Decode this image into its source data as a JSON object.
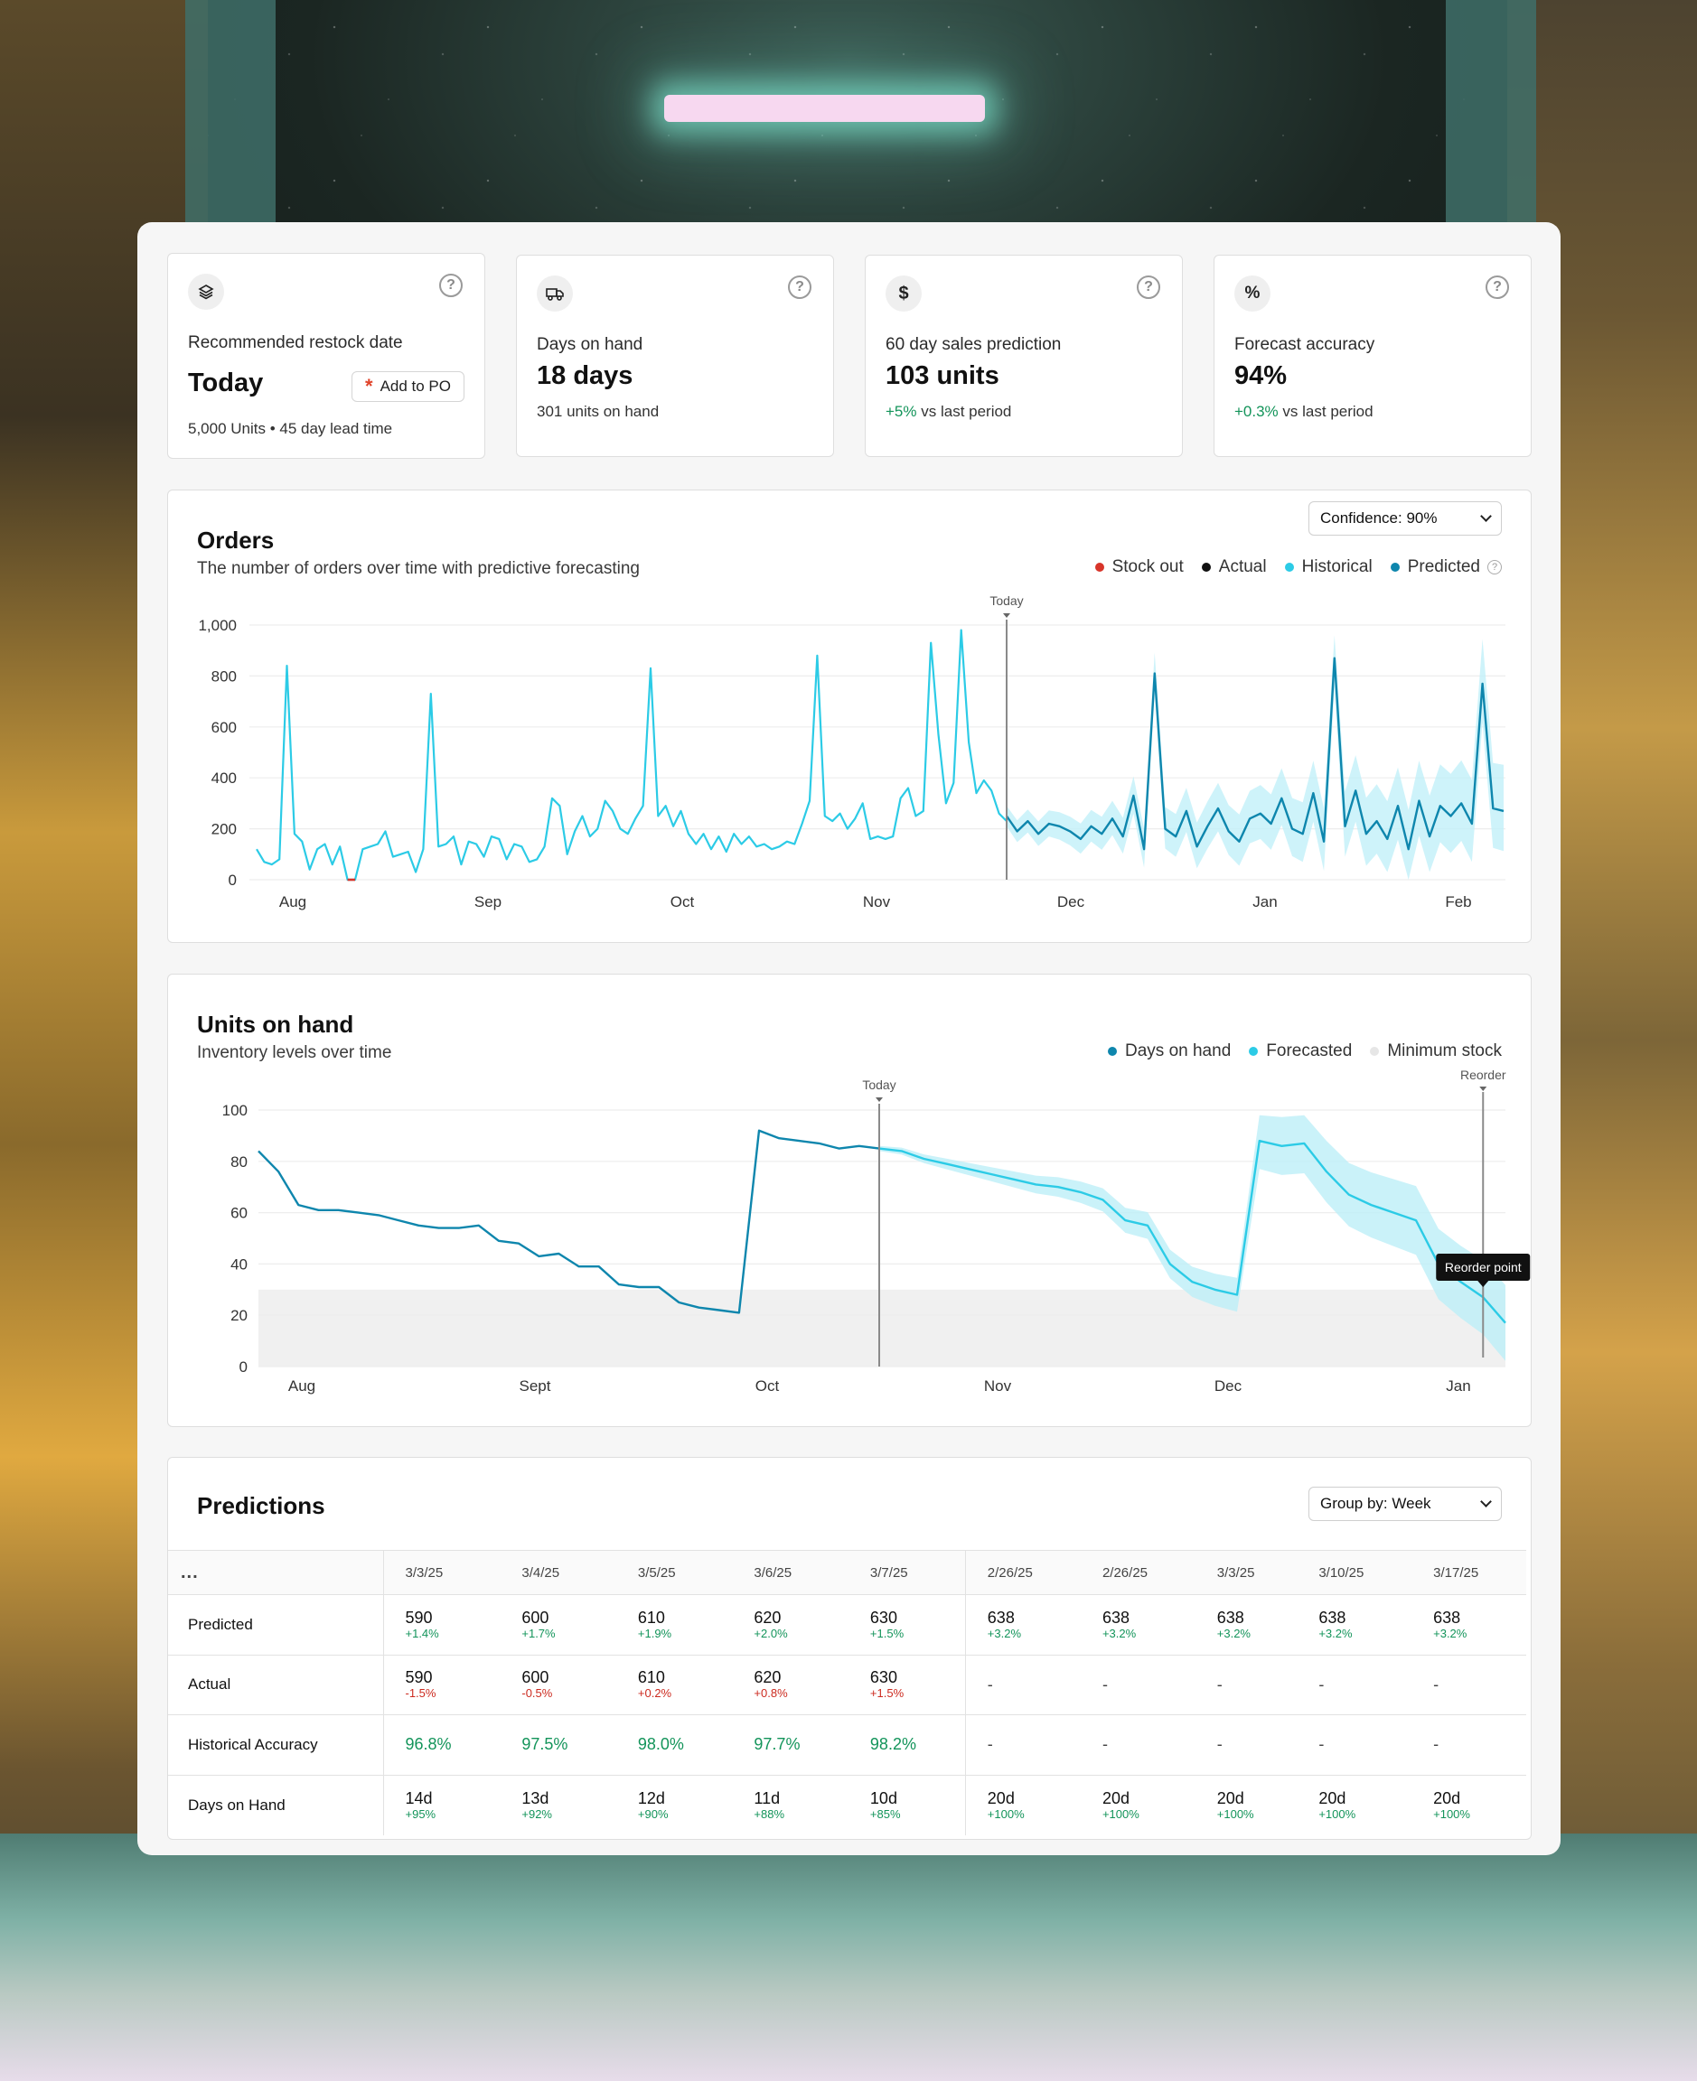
{
  "kpis": [
    {
      "icon": "layers-icon",
      "label": "Recommended restock date",
      "value": "Today",
      "button": "Add to PO",
      "sub": "5,000 Units • 45 day lead time"
    },
    {
      "icon": "truck-icon",
      "label": "Days on hand",
      "value": "18 days",
      "sub": "301 units on hand",
      "sub_tone": "negative"
    },
    {
      "icon": "dollar-icon",
      "label": "60 day sales prediction",
      "value": "103 units",
      "delta": "+5%",
      "sub": "vs last period"
    },
    {
      "icon": "percent-icon",
      "label": "Forecast accuracy",
      "value": "94%",
      "delta": "+0.3%",
      "sub": "vs last period"
    }
  ],
  "orders": {
    "title": "Orders",
    "subtitle": "The number of orders over time with predictive forecasting",
    "confidence": "Confidence: 90%",
    "legend": [
      {
        "label": "Stock out",
        "color": "#d8352a"
      },
      {
        "label": "Actual",
        "color": "#111111"
      },
      {
        "label": "Historical",
        "color": "#2ccbe6"
      },
      {
        "label": "Predicted",
        "color": "#0e86ad"
      }
    ],
    "today_label": "Today"
  },
  "units": {
    "title": "Units on hand",
    "subtitle": "Inventory levels over time",
    "legend": [
      {
        "label": "Days on hand",
        "color": "#0e86ad"
      },
      {
        "label": "Forecasted",
        "color": "#2ccbe6"
      },
      {
        "label": "Minimum stock",
        "color": "#e6e6e6"
      }
    ],
    "today_label": "Today",
    "reorder_label": "Reorder",
    "reorder_tooltip": "Reorder point"
  },
  "predictions": {
    "title": "Predictions",
    "group_by": "Group by: Week",
    "corner": "...",
    "columns": [
      "3/3/25",
      "3/4/25",
      "3/5/25",
      "3/6/25",
      "3/7/25",
      "2/26/25",
      "2/26/25",
      "3/3/25",
      "3/10/25",
      "3/17/25"
    ],
    "rows": [
      {
        "label": "Predicted",
        "cells": [
          {
            "v": "590",
            "d": "+1.4%",
            "t": "pos"
          },
          {
            "v": "600",
            "d": "+1.7%",
            "t": "pos"
          },
          {
            "v": "610",
            "d": "+1.9%",
            "t": "pos"
          },
          {
            "v": "620",
            "d": "+2.0%",
            "t": "pos"
          },
          {
            "v": "630",
            "d": "+1.5%",
            "t": "pos"
          },
          {
            "v": "638",
            "d": "+3.2%",
            "t": "pos"
          },
          {
            "v": "638",
            "d": "+3.2%",
            "t": "pos"
          },
          {
            "v": "638",
            "d": "+3.2%",
            "t": "pos"
          },
          {
            "v": "638",
            "d": "+3.2%",
            "t": "pos"
          },
          {
            "v": "638",
            "d": "+3.2%",
            "t": "pos"
          }
        ]
      },
      {
        "label": "Actual",
        "cells": [
          {
            "v": "590",
            "d": "-1.5%",
            "t": "neg"
          },
          {
            "v": "600",
            "d": "-0.5%",
            "t": "neg"
          },
          {
            "v": "610",
            "d": "+0.2%",
            "t": "neg"
          },
          {
            "v": "620",
            "d": "+0.8%",
            "t": "neg"
          },
          {
            "v": "630",
            "d": "+1.5%",
            "t": "neg"
          },
          {
            "v": "-"
          },
          {
            "v": "-"
          },
          {
            "v": "-"
          },
          {
            "v": "-"
          },
          {
            "v": "-"
          }
        ]
      },
      {
        "label": "Historical Accuracy",
        "cells": [
          {
            "v": "96.8%",
            "t": "acc"
          },
          {
            "v": "97.5%",
            "t": "acc"
          },
          {
            "v": "98.0%",
            "t": "acc"
          },
          {
            "v": "97.7%",
            "t": "acc"
          },
          {
            "v": "98.2%",
            "t": "acc"
          },
          {
            "v": "-"
          },
          {
            "v": "-"
          },
          {
            "v": "-"
          },
          {
            "v": "-"
          },
          {
            "v": "-"
          }
        ]
      },
      {
        "label": "Days on Hand",
        "cells": [
          {
            "v": "14d",
            "d": "+95%",
            "t": "pos"
          },
          {
            "v": "13d",
            "d": "+92%",
            "t": "pos"
          },
          {
            "v": "12d",
            "d": "+90%",
            "t": "pos"
          },
          {
            "v": "11d",
            "d": "+88%",
            "t": "pos"
          },
          {
            "v": "10d",
            "d": "+85%",
            "t": "pos"
          },
          {
            "v": "20d",
            "d": "+100%",
            "t": "pos"
          },
          {
            "v": "20d",
            "d": "+100%",
            "t": "pos"
          },
          {
            "v": "20d",
            "d": "+100%",
            "t": "pos"
          },
          {
            "v": "20d",
            "d": "+100%",
            "t": "pos"
          },
          {
            "v": "20d",
            "d": "+100%",
            "t": "pos"
          }
        ]
      }
    ]
  },
  "chart_data": [
    {
      "type": "line",
      "chart": "orders",
      "xlabels": [
        "Aug",
        "Sep",
        "Oct",
        "Nov",
        "Dec",
        "Jan",
        "Feb"
      ],
      "yticks": [
        "0",
        "200",
        "400",
        "600",
        "800",
        "1,000"
      ],
      "ylim": [
        0,
        1000
      ],
      "today_index": 68,
      "historical": [
        120,
        70,
        60,
        80,
        840,
        180,
        150,
        40,
        120,
        140,
        60,
        130,
        0,
        0,
        120,
        130,
        140,
        190,
        90,
        100,
        110,
        30,
        120,
        730,
        130,
        140,
        170,
        60,
        150,
        140,
        90,
        170,
        160,
        80,
        140,
        130,
        70,
        80,
        130,
        320,
        290,
        100,
        190,
        250,
        170,
        200,
        310,
        270,
        200,
        180,
        240,
        290,
        830,
        250,
        290,
        210,
        270,
        180,
        140,
        180,
        120,
        170,
        110,
        180,
        140,
        170,
        130,
        140,
        120
      ],
      "historical_b": [
        130,
        150,
        140,
        220,
        310,
        880,
        250,
        230,
        260,
        200,
        240,
        300,
        160,
        170,
        160,
        170,
        320,
        360,
        250,
        270,
        930,
        570,
        300,
        380,
        980,
        540,
        340,
        390,
        350,
        260,
        230
      ],
      "predicted": [
        250,
        190,
        230,
        180,
        220,
        210,
        190,
        160,
        210,
        180,
        240,
        170,
        330,
        120,
        810,
        200,
        170,
        270,
        130,
        210,
        280,
        190,
        150,
        240,
        260,
        220,
        320,
        200,
        180,
        340,
        150,
        870,
        210,
        350,
        180,
        230,
        160,
        290,
        120,
        310,
        170,
        290,
        250,
        300,
        220,
        770,
        280,
        270
      ],
      "stockout_points": [
        12,
        13
      ]
    },
    {
      "type": "line",
      "chart": "units_on_hand",
      "xlabels": [
        "Aug",
        "Sept",
        "Oct",
        "Nov",
        "Dec",
        "Jan"
      ],
      "yticks": [
        "0",
        "20",
        "40",
        "60",
        "80",
        "100"
      ],
      "ylim": [
        0,
        100
      ],
      "minimum_stock": 30,
      "days_on_hand": [
        84,
        76,
        63,
        61,
        61,
        60,
        59,
        57,
        55,
        54,
        54,
        55,
        49,
        48,
        43,
        44,
        39,
        39,
        32,
        31,
        31,
        25,
        23,
        22,
        21,
        92,
        89,
        88,
        87,
        85,
        86,
        85
      ],
      "forecasted": [
        85,
        84,
        81,
        79,
        77,
        75,
        73,
        71,
        70,
        68,
        65,
        57,
        55,
        40,
        33,
        30,
        28,
        88,
        86,
        87,
        76,
        67,
        63,
        60,
        57,
        40,
        33,
        27,
        17
      ],
      "reorder_index": 27
    }
  ]
}
